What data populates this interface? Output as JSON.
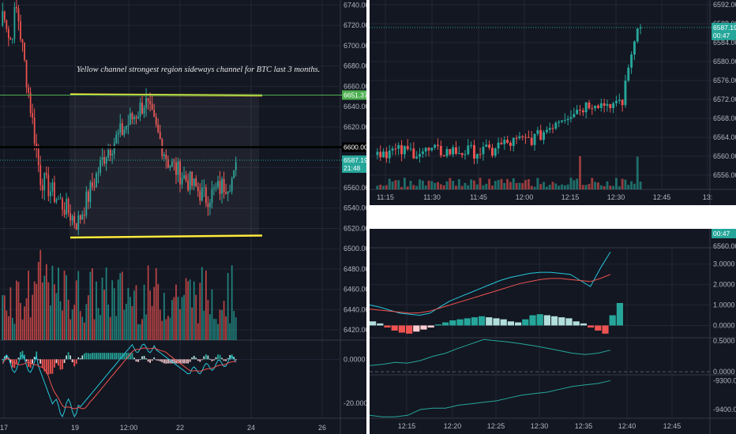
{
  "annotation": "Yellow channel strongest region sideways channel for BTC last 3 months.",
  "colors": {
    "up": "#26a69a",
    "down": "#ef5350",
    "channel": "#ffeb3b",
    "teal_tag": "#26a69a",
    "green_line": "#4caf50",
    "black_line": "#000000",
    "macd": "#26c6da",
    "signal": "#ef5350"
  },
  "left_chart": {
    "price_ticks": [
      "6740.00",
      "6720.00",
      "6700.00",
      "6680.00",
      "6660.00",
      "6640.00",
      "6620.00",
      "6600.00",
      "6580.00",
      "6560.00",
      "6540.00",
      "6520.00",
      "6500.00",
      "6480.00",
      "6460.00",
      "6440.00",
      "6420.00"
    ],
    "x_ticks": [
      "17",
      "19",
      "12:00",
      "22",
      "24",
      "26"
    ],
    "macd_ticks": [
      "0.0000",
      "-20.0000"
    ],
    "tag_green": "6651.37",
    "tag_black": "6600.00",
    "tag_price": "6587.19",
    "tag_time": "21:48"
  },
  "right_top": {
    "price_ticks": [
      "6592.00",
      "6588.00",
      "6584.00",
      "6580.00",
      "6576.00",
      "6572.00",
      "6568.00",
      "6564.00",
      "6560.00",
      "6556.00"
    ],
    "x_ticks": [
      "11:15",
      "11:30",
      "11:45",
      "12:00",
      "12:15",
      "12:30",
      "12:45",
      "13:"
    ],
    "tag_price": "6587.19",
    "tag_time": "00:47"
  },
  "right_bottom": {
    "tag_time": "00:47",
    "tag_price": "6560.00",
    "macd_ticks": [
      "3.0000",
      "2.0000",
      "1.0000",
      "0.0000"
    ],
    "rsi_ticks": [
      "0.5000",
      "0.0000"
    ],
    "obv_ticks": [
      "-9300.000",
      "-9400.000"
    ],
    "x_ticks": [
      "12:15",
      "12:20",
      "12:25",
      "12:30",
      "12:35",
      "12:40",
      "12:45"
    ]
  },
  "chart_data": [
    {
      "type": "candlestick",
      "title": "BTC",
      "price_range": [
        6410,
        6745
      ],
      "channel": {
        "upper": 6652,
        "lower": 6513
      },
      "levels": [
        6651.37,
        6600.0,
        6587.19
      ],
      "x_labels": [
        "17",
        "19",
        "12:00",
        "22",
        "24",
        "26"
      ],
      "last_price": 6587.19
    },
    {
      "type": "candlestick",
      "price_range": [
        6553,
        6593
      ],
      "x_labels": [
        "11:15",
        "11:30",
        "11:45",
        "12:00",
        "12:15",
        "12:30",
        "12:45",
        "13:"
      ],
      "last_price": 6587.19
    },
    {
      "type": "line",
      "series": [
        {
          "values": []
        }
      ],
      "macd_range": [
        -0.6,
        3.8
      ],
      "x_labels": [
        "12:15",
        "12:20",
        "12:25",
        "12:30",
        "12:35",
        "12:40",
        "12:45"
      ]
    }
  ]
}
